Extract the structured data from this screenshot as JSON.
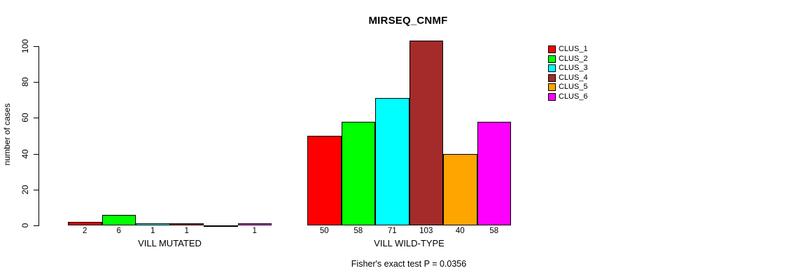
{
  "chart_data": {
    "type": "bar",
    "title": "MIRSEQ_CNMF",
    "ylabel": "number of cases",
    "xlabel": "",
    "footnote": "Fisher's exact test P = 0.0356",
    "groups": [
      "VILL MUTATED",
      "VILL WILD-TYPE"
    ],
    "series": [
      {
        "name": "CLUS_1",
        "color": "#FF0000",
        "values": [
          2,
          50
        ]
      },
      {
        "name": "CLUS_2",
        "color": "#00FF00",
        "values": [
          6,
          58
        ]
      },
      {
        "name": "CLUS_3",
        "color": "#00FFFF",
        "values": [
          1,
          71
        ]
      },
      {
        "name": "CLUS_4",
        "color": "#A52A2A",
        "values": [
          1,
          103
        ]
      },
      {
        "name": "CLUS_5",
        "color": "#FFA500",
        "values": [
          0,
          40
        ]
      },
      {
        "name": "CLUS_6",
        "color": "#FF00FF",
        "values": [
          1,
          58
        ]
      }
    ],
    "bar_value_labels": "shown under each bar, hidden when value is 0",
    "yticks": [
      0,
      20,
      40,
      60,
      80,
      100
    ],
    "ylim": [
      0,
      100
    ],
    "grid": false,
    "legend_position": "right-outside",
    "background_color": "#FFFFFF",
    "text_color": "#000000"
  }
}
